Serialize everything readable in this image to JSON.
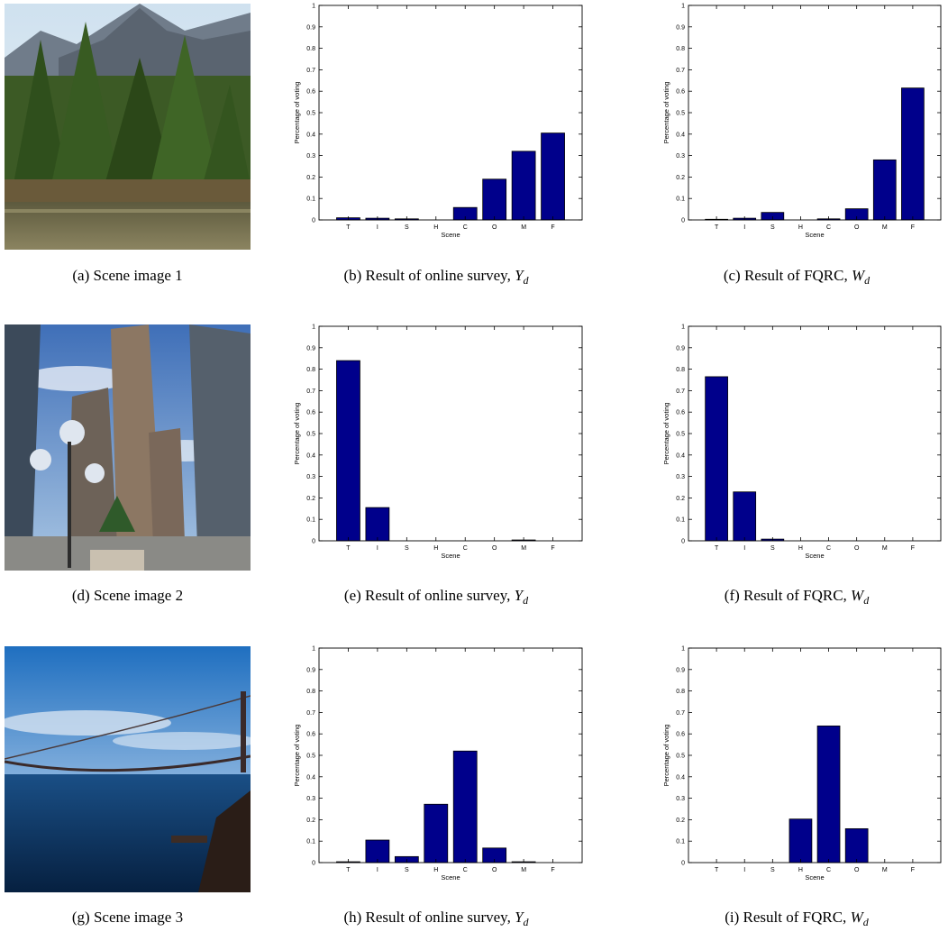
{
  "rows": [
    {
      "photo": {
        "name": "forest-mountain-photo",
        "caption_prefix": "(a) Scene image 1"
      },
      "charts": [
        {
          "caption_prefix": "(b) Result of online survey, ",
          "caption_sym": "Y",
          "caption_sub": "d"
        },
        {
          "caption_prefix": "(c) Result of FQRC, ",
          "caption_sym": "W",
          "caption_sub": "d"
        }
      ]
    },
    {
      "photo": {
        "name": "city-skyscraper-photo",
        "caption_prefix": "(d) Scene image 2"
      },
      "charts": [
        {
          "caption_prefix": "(e) Result of online survey, ",
          "caption_sym": "Y",
          "caption_sub": "d"
        },
        {
          "caption_prefix": "(f) Result of FQRC, ",
          "caption_sym": "W",
          "caption_sub": "d"
        }
      ]
    },
    {
      "photo": {
        "name": "bridge-coast-photo",
        "caption_prefix": "(g) Scene image 3"
      },
      "charts": [
        {
          "caption_prefix": "(h) Result of online survey, ",
          "caption_sym": "Y",
          "caption_sub": "d"
        },
        {
          "caption_prefix": "(i) Result of FQRC, ",
          "caption_sym": "W",
          "caption_sub": "d"
        }
      ]
    }
  ],
  "chart_data": [
    {
      "type": "bar",
      "id": "b",
      "categories": [
        "T",
        "I",
        "S",
        "H",
        "C",
        "O",
        "M",
        "F"
      ],
      "values": [
        0.01,
        0.008,
        0.005,
        0,
        0.058,
        0.19,
        0.32,
        0.405
      ],
      "xlabel": "Scene",
      "ylabel": "Percentage of voting",
      "ylim": [
        0,
        1
      ],
      "yticks": [
        "0",
        "0.1",
        "0.2",
        "0.3",
        "0.4",
        "0.5",
        "0.6",
        "0.7",
        "0.8",
        "0.9",
        "1"
      ],
      "bar_color": "#00008B",
      "grid": false
    },
    {
      "type": "bar",
      "id": "c",
      "categories": [
        "T",
        "I",
        "S",
        "H",
        "C",
        "O",
        "M",
        "F"
      ],
      "values": [
        0.003,
        0.008,
        0.035,
        0,
        0.005,
        0.052,
        0.28,
        0.615
      ],
      "xlabel": "Scene",
      "ylabel": "Percentage of voting",
      "ylim": [
        0,
        1
      ],
      "yticks": [
        "0",
        "0.1",
        "0.2",
        "0.3",
        "0.4",
        "0.5",
        "0.6",
        "0.7",
        "0.8",
        "0.9",
        "1"
      ],
      "bar_color": "#00008B",
      "grid": false
    },
    {
      "type": "bar",
      "id": "e",
      "categories": [
        "T",
        "I",
        "S",
        "H",
        "C",
        "O",
        "M",
        "F"
      ],
      "values": [
        0.84,
        0.155,
        0,
        0,
        0,
        0,
        0.004,
        0
      ],
      "xlabel": "Scene",
      "ylabel": "Percentage of voting",
      "ylim": [
        0,
        1
      ],
      "yticks": [
        "0",
        "0.1",
        "0.2",
        "0.3",
        "0.4",
        "0.5",
        "0.6",
        "0.7",
        "0.8",
        "0.9",
        "1"
      ],
      "bar_color": "#00008B",
      "grid": false
    },
    {
      "type": "bar",
      "id": "f",
      "categories": [
        "T",
        "I",
        "S",
        "H",
        "C",
        "O",
        "M",
        "F"
      ],
      "values": [
        0.765,
        0.228,
        0.008,
        0,
        0,
        0,
        0,
        0
      ],
      "xlabel": "Scene",
      "ylabel": "Percentage of voting",
      "ylim": [
        0,
        1
      ],
      "yticks": [
        "0",
        "0.1",
        "0.2",
        "0.3",
        "0.4",
        "0.5",
        "0.6",
        "0.7",
        "0.8",
        "0.9",
        "1"
      ],
      "bar_color": "#00008B",
      "grid": false
    },
    {
      "type": "bar",
      "id": "h",
      "categories": [
        "T",
        "I",
        "S",
        "H",
        "C",
        "O",
        "M",
        "F"
      ],
      "values": [
        0.004,
        0.105,
        0.028,
        0.272,
        0.52,
        0.068,
        0.004,
        0
      ],
      "xlabel": "Scene",
      "ylabel": "Percentage of voting",
      "ylim": [
        0,
        1
      ],
      "yticks": [
        "0",
        "0.1",
        "0.2",
        "0.3",
        "0.4",
        "0.5",
        "0.6",
        "0.7",
        "0.8",
        "0.9",
        "1"
      ],
      "bar_color": "#00008B",
      "grid": false
    },
    {
      "type": "bar",
      "id": "i",
      "categories": [
        "T",
        "I",
        "S",
        "H",
        "C",
        "O",
        "M",
        "F"
      ],
      "values": [
        0,
        0,
        0,
        0.203,
        0.637,
        0.158,
        0,
        0
      ],
      "xlabel": "Scene",
      "ylabel": "Percentage of voting",
      "ylim": [
        0,
        1
      ],
      "yticks": [
        "0",
        "0.1",
        "0.2",
        "0.3",
        "0.4",
        "0.5",
        "0.6",
        "0.7",
        "0.8",
        "0.9",
        "1"
      ],
      "bar_color": "#00008B",
      "grid": false
    }
  ]
}
